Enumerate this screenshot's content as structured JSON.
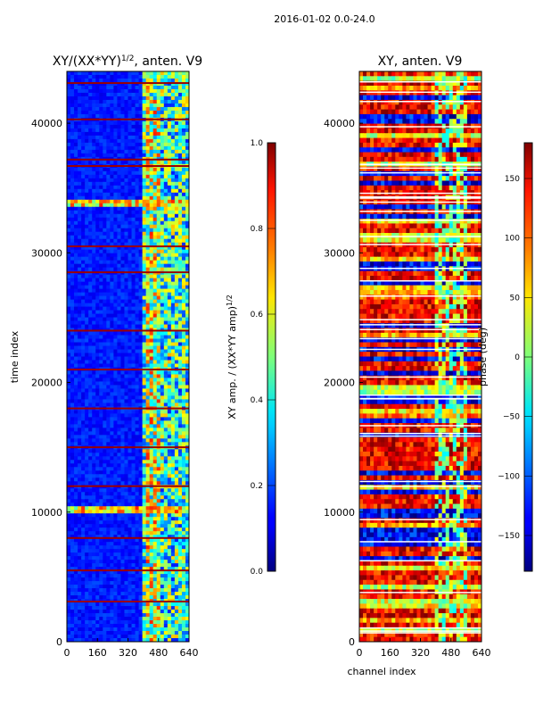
{
  "suptitle": "2016-01-02 0.0-24.0",
  "chart_data": [
    {
      "type": "heatmap",
      "title_base": "XY/(XX*YY)",
      "title_exp": "1/2",
      "title_tail": ", anten. V9",
      "xlabel": "",
      "ylabel": "time index",
      "x_ticks": [
        0,
        160,
        320,
        480,
        640
      ],
      "y_ticks": [
        0,
        10000,
        20000,
        30000,
        40000
      ],
      "xlim": [
        0,
        640
      ],
      "ylim": [
        0,
        44000
      ],
      "colorscale": "jet",
      "colorbar": {
        "label_base": "XY amp. / (XX*YY amp)",
        "label_exp": "1/2",
        "ticks": [
          "0.0",
          "0.2",
          "0.4",
          "0.6",
          "0.8",
          "1.0"
        ],
        "tick_values": [
          0.0,
          0.2,
          0.4,
          0.6,
          0.8,
          1.0
        ],
        "range": [
          0.0,
          1.0
        ]
      },
      "features": {
        "bright_channel_band": [
          400,
          640
        ],
        "bright_rows_time_index": [
          10200,
          33800
        ],
        "flagged_rows_time_index": [
          3100,
          5500,
          8000,
          12000,
          15000,
          18000,
          21000,
          24000,
          28500,
          30500,
          36700,
          37200,
          40300,
          43100
        ]
      }
    },
    {
      "type": "heatmap",
      "title": "XY, anten. V9",
      "xlabel": "channel index",
      "ylabel": "",
      "x_ticks": [
        0,
        160,
        320,
        480,
        640
      ],
      "y_ticks": [
        0,
        10000,
        20000,
        30000,
        40000
      ],
      "xlim": [
        0,
        640
      ],
      "ylim": [
        0,
        44000
      ],
      "colorscale": "jet",
      "colorbar": {
        "label": "phase (deg)",
        "ticks": [
          "−150",
          "−100",
          "−50",
          "0",
          "50",
          "100",
          "150"
        ],
        "tick_values": [
          -150,
          -100,
          -50,
          0,
          50,
          100,
          150
        ],
        "range": [
          -180,
          180
        ]
      }
    }
  ]
}
